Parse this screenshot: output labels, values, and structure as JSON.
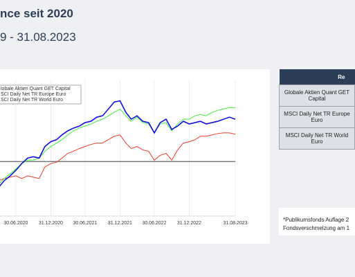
{
  "header": {
    "title": "nce seit 2020",
    "subtitle": "9 - 31.08.2023"
  },
  "chart_data": {
    "type": "line",
    "x": [
      "31.03.2020",
      "30.04.2020",
      "31.05.2020",
      "30.06.2020",
      "31.07.2020",
      "31.08.2020",
      "30.09.2020",
      "31.10.2020",
      "30.11.2020",
      "31.12.2020",
      "31.01.2021",
      "28.02.2021",
      "31.03.2021",
      "30.04.2021",
      "31.05.2021",
      "30.06.2021",
      "31.07.2021",
      "31.08.2021",
      "30.09.2021",
      "31.10.2021",
      "30.11.2021",
      "31.12.2021",
      "31.01.2022",
      "28.02.2022",
      "31.03.2022",
      "30.04.2022",
      "31.05.2022",
      "30.06.2022",
      "31.07.2022",
      "31.08.2022",
      "30.09.2022",
      "31.10.2022",
      "30.11.2022",
      "31.12.2022",
      "31.01.2023",
      "28.02.2023",
      "31.03.2023",
      "30.04.2023",
      "31.05.2023",
      "30.06.2023",
      "31.07.2023",
      "31.08.2023"
    ],
    "series": [
      {
        "name": "lobale Aktien Quant GET Capital",
        "color": "#1010e0",
        "values": [
          81,
          86,
          89.5,
          93.5,
          98.5,
          102.5,
          103.5,
          102.5,
          111,
          114.5,
          116,
          119.5,
          122.5,
          124.5,
          126,
          128.5,
          129.5,
          132.5,
          133.5,
          138.5,
          143.5,
          144.5,
          136,
          131,
          133.5,
          129.5,
          128.5,
          121,
          128.5,
          131,
          123.5,
          126,
          129.5,
          127.5,
          128.5,
          129.5,
          127.5,
          128.5,
          129.5,
          131,
          132.5,
          131
        ]
      },
      {
        "name": "SCI Daily Net TR Europe Euro",
        "color": "#f03a2a",
        "values": [
          86,
          87.5,
          88.5,
          89.5,
          87.5,
          89.5,
          88.5,
          87.5,
          96,
          98.5,
          99.5,
          102.5,
          106,
          107.5,
          109.5,
          111,
          112.5,
          113.5,
          113.5,
          116,
          118.5,
          119.5,
          113.5,
          109.5,
          111,
          108.5,
          107.5,
          101,
          104.5,
          106,
          101,
          108.5,
          113.5,
          114.5,
          116,
          118.5,
          118.5,
          119.5,
          120.5,
          121,
          121,
          120
        ]
      },
      {
        "name": "SCI Daily Net TR World Euro",
        "color": "#3cf03c",
        "values": [
          83.5,
          87.5,
          91,
          94.5,
          98.5,
          101,
          101,
          102.5,
          107.5,
          111,
          113.5,
          116,
          119.5,
          122.5,
          124.5,
          126,
          127.5,
          129.5,
          131,
          133.5,
          136,
          138.5,
          133.5,
          129.5,
          132.5,
          128.5,
          127.5,
          121,
          127.5,
          128.5,
          122.5,
          127.5,
          131,
          131,
          133.5,
          134.5,
          133.5,
          136,
          137.5,
          138.5,
          139.5,
          139.5
        ]
      }
    ],
    "xlim": [
      "31.03.2020",
      "31.08.2023"
    ],
    "xticks": [
      "30.06.2020",
      "31.12.2020",
      "30.06.2021",
      "31.12.2021",
      "30.06.2022",
      "31.12.2022",
      "31.08.2023"
    ],
    "ylim": [
      60,
      160
    ],
    "reference_line": 100,
    "grid": true
  },
  "table": {
    "header": "Re",
    "rows": [
      "Globale Aktien Quant GET Capital",
      "MSCI Daily Net TR Europe Euro",
      "MSCI Daily Net TR World Euro"
    ]
  },
  "note": {
    "lines": [
      "*Publikumsfonds Auflage 2",
      "Fondsverschmelzung am 1"
    ]
  }
}
